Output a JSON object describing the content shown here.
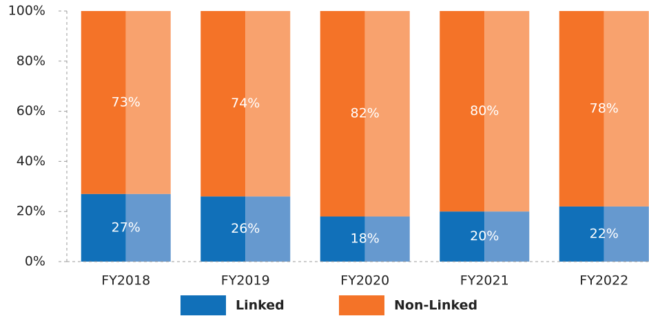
{
  "chart_data": {
    "type": "stacked_bar",
    "categories": [
      "FY2018",
      "FY2019",
      "FY2020",
      "FY2021",
      "FY2022"
    ],
    "series": [
      {
        "name": "Linked",
        "color": "#1170b9",
        "color_light": "#6699cf",
        "values": [
          27,
          26,
          18,
          20,
          22
        ],
        "value_labels": [
          "27%",
          "26%",
          "18%",
          "20%",
          "22%"
        ]
      },
      {
        "name": "Non-Linked",
        "color": "#f47328",
        "color_light": "#f8a26e",
        "values": [
          73,
          74,
          82,
          80,
          78
        ],
        "value_labels": [
          "73%",
          "74%",
          "82%",
          "80%",
          "78%"
        ]
      }
    ],
    "ylim": [
      0,
      100
    ],
    "yticks": [
      {
        "value": 0,
        "label": "0%"
      },
      {
        "value": 20,
        "label": "20%"
      },
      {
        "value": 40,
        "label": "40%"
      },
      {
        "value": 60,
        "label": "60%"
      },
      {
        "value": 80,
        "label": "80%"
      },
      {
        "value": 100,
        "label": "100%"
      }
    ],
    "legend": "bottom"
  }
}
